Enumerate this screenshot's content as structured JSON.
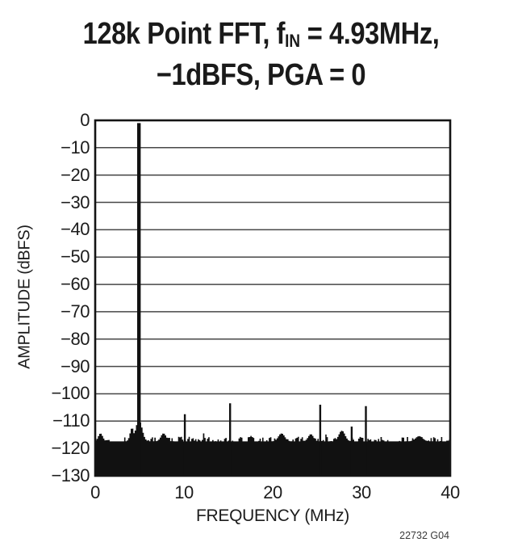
{
  "figure": {
    "title_line1_prefix": "128k Point FFT, f",
    "title_line1_sub": "IN",
    "title_line1_suffix": " = 4.93MHz,",
    "title_line2": "−1dBFS, PGA = 0",
    "caption": "22732 G04"
  },
  "chart_data": {
    "type": "line",
    "subtype": "fft-spectrum",
    "title": "128k Point FFT, fIN = 4.93MHz, −1dBFS, PGA = 0",
    "xlabel": "FREQUENCY (MHz)",
    "ylabel": "AMPLITUDE (dBFS)",
    "xlim": [
      0,
      40
    ],
    "ylim": [
      -130,
      0
    ],
    "xticks": [
      0,
      10,
      20,
      30,
      40
    ],
    "xticklabels": [
      "0",
      "10",
      "20",
      "30",
      "40"
    ],
    "yticks": [
      0,
      -10,
      -20,
      -30,
      -40,
      -50,
      -60,
      -70,
      -80,
      -90,
      -100,
      -110,
      -120,
      -130
    ],
    "yticklabels": [
      "0",
      "−10",
      "−20",
      "−30",
      "−40",
      "−50",
      "−60",
      "−70",
      "−80",
      "−90",
      "−100",
      "−110",
      "−120",
      "−130"
    ],
    "grid": "horizontal-only",
    "legend": "none",
    "fundamental": {
      "freq_mhz": 4.93,
      "amplitude_dbfs": -1
    },
    "spurs": [
      {
        "freq_mhz": 10.1,
        "amplitude_dbfs": -107.5
      },
      {
        "freq_mhz": 15.2,
        "amplitude_dbfs": -103.5
      },
      {
        "freq_mhz": 25.35,
        "amplitude_dbfs": -104
      },
      {
        "freq_mhz": 28.9,
        "amplitude_dbfs": -112
      },
      {
        "freq_mhz": 30.5,
        "amplitude_dbfs": -104.5
      }
    ],
    "noise_floor": {
      "mean_dbfs": -117.4,
      "variation_db": 1.7,
      "spike_chance": 0.07,
      "spike_max_db": 2.5,
      "bins": 270,
      "seed": 13
    },
    "skirt": {
      "center_mhz": 4.93,
      "sigma_mhz": 0.35,
      "peak_dbfs": -109.5
    },
    "bumps": [
      {
        "freq_mhz": 0.6,
        "amplitude_dbfs": -114.5,
        "width_mhz": 0.25
      },
      {
        "freq_mhz": 4.15,
        "amplitude_dbfs": -112.5,
        "width_mhz": 0.22
      },
      {
        "freq_mhz": 7.7,
        "amplitude_dbfs": -114.5,
        "width_mhz": 0.3
      },
      {
        "freq_mhz": 21.0,
        "amplitude_dbfs": -114.5,
        "width_mhz": 0.35
      },
      {
        "freq_mhz": 24.3,
        "amplitude_dbfs": -114.8,
        "width_mhz": 0.3
      },
      {
        "freq_mhz": 27.8,
        "amplitude_dbfs": -113.5,
        "width_mhz": 0.35
      },
      {
        "freq_mhz": 36.5,
        "amplitude_dbfs": -115.5,
        "width_mhz": 0.4
      }
    ],
    "colors": {
      "series": "#111111",
      "grid": "#474747",
      "border": "#141414",
      "background": "#ffffff",
      "text": "#1c1c1c"
    }
  }
}
